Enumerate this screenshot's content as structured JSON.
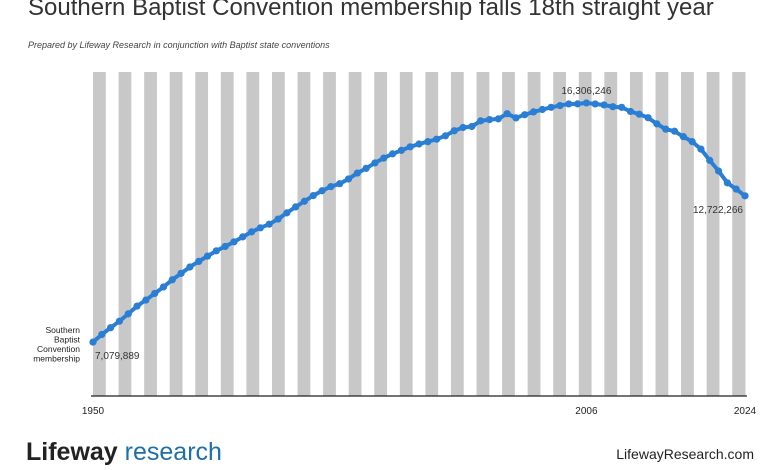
{
  "chart_data": {
    "type": "line",
    "title": "Southern Baptist Convention membership falls 18th straight year",
    "subtitle": "Prepared by Lifeway Research in conjunction with Baptist state conventions",
    "ylabel_lines": [
      "Southern",
      "Baptist",
      "Convention",
      "membership"
    ],
    "x_ticks": [
      1950,
      2006,
      2024
    ],
    "xlim": [
      1950,
      2024
    ],
    "ylim": [
      5000000,
      17500000
    ],
    "grid": "alternating vertical stripes",
    "annotations": [
      {
        "x": 1950,
        "label": "7,079,889"
      },
      {
        "x": 2006,
        "label": "16,306,246"
      },
      {
        "x": 2024,
        "label": "12,722,266"
      }
    ],
    "series": [
      {
        "color": "#2a7fd4",
        "x": [
          1950,
          1951,
          1952,
          1953,
          1954,
          1955,
          1956,
          1957,
          1958,
          1959,
          1960,
          1961,
          1962,
          1963,
          1964,
          1965,
          1966,
          1967,
          1968,
          1969,
          1970,
          1971,
          1972,
          1973,
          1974,
          1975,
          1976,
          1977,
          1978,
          1979,
          1980,
          1981,
          1982,
          1983,
          1984,
          1985,
          1986,
          1987,
          1988,
          1989,
          1990,
          1991,
          1992,
          1993,
          1994,
          1995,
          1996,
          1997,
          1998,
          1999,
          2000,
          2001,
          2002,
          2003,
          2004,
          2005,
          2006,
          2007,
          2008,
          2009,
          2010,
          2011,
          2012,
          2013,
          2014,
          2015,
          2016,
          2017,
          2018,
          2019,
          2020,
          2021,
          2022,
          2023,
          2024
        ],
        "values": [
          7079889,
          7373498,
          7634493,
          7886016,
          8169491,
          8467439,
          8700480,
          8956756,
          9206758,
          9485276,
          9731591,
          9978139,
          10193052,
          10395940,
          10601515,
          10770573,
          10947389,
          11140000,
          11332229,
          11489613,
          11628032,
          11826463,
          12065333,
          12295400,
          12513378,
          12733124,
          12917992,
          13078239,
          13191394,
          13372757,
          13600126,
          13782644,
          13991709,
          14178051,
          14341821,
          14477364,
          14613638,
          14722617,
          14812844,
          14907826,
          15038409,
          15232347,
          15358866,
          15398642,
          15614060,
          15663296,
          15691964,
          15891514,
          15729356,
          15851756,
          15960308,
          16052920,
          16137736,
          16205050,
          16267494,
          16270315,
          16306246,
          16266920,
          16228438,
          16160088,
          16136044,
          15978112,
          15872404,
          15735640,
          15499173,
          15294764,
          15216978,
          15005638,
          14813234,
          14525579,
          14089947,
          13680493,
          13223122,
          12982090,
          12722266
        ]
      }
    ]
  },
  "footer": {
    "brand_main": "Lifeway",
    "brand_sub": "research",
    "url": "LifewayResearch.com"
  }
}
